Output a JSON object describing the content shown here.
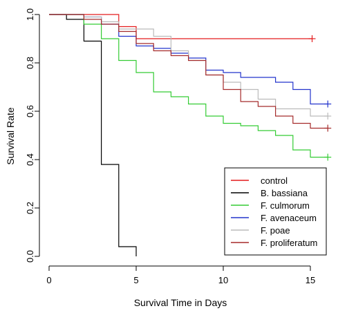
{
  "chart_data": {
    "type": "line",
    "step": true,
    "xlabel": "Survival Time in Days",
    "ylabel": "Survival Rate",
    "xlim": [
      0,
      16.5
    ],
    "ylim": [
      0,
      1
    ],
    "xticks": [
      0,
      5,
      10,
      15
    ],
    "yticks": [
      0.0,
      0.2,
      0.4,
      0.6,
      0.8,
      1.0
    ],
    "ytick_labels": [
      "0.0",
      "0.2",
      "0.4",
      "0.6",
      "0.8",
      "1.0"
    ],
    "grid": false,
    "legend_position": "bottom-right",
    "series": [
      {
        "name": "control",
        "color": "#e41a1c",
        "x": [
          0,
          2,
          4,
          5,
          15
        ],
        "y": [
          1.0,
          1.0,
          0.95,
          0.9,
          0.9
        ],
        "end_x": 15.1,
        "censor_x": 15.1
      },
      {
        "name": "B. bassiana",
        "color": "#000000",
        "x": [
          0,
          1,
          2,
          3,
          4,
          5
        ],
        "y": [
          1.0,
          0.98,
          0.89,
          0.38,
          0.04,
          0.0
        ],
        "end_x": 5,
        "censor_x": null
      },
      {
        "name": "F. culmorum",
        "color": "#33cc33",
        "x": [
          0,
          2,
          3,
          4,
          5,
          6,
          7,
          8,
          9,
          10,
          11,
          12,
          13,
          14,
          15
        ],
        "y": [
          1.0,
          0.96,
          0.9,
          0.81,
          0.76,
          0.68,
          0.66,
          0.63,
          0.58,
          0.55,
          0.54,
          0.52,
          0.5,
          0.44,
          0.41
        ],
        "end_x": 16,
        "censor_x": 16
      },
      {
        "name": "F. avenaceum",
        "color": "#2233cc",
        "x": [
          0,
          2,
          3,
          4,
          5,
          6,
          7,
          8,
          9,
          10,
          11,
          13,
          14,
          15
        ],
        "y": [
          1.0,
          0.99,
          0.96,
          0.91,
          0.87,
          0.86,
          0.84,
          0.82,
          0.77,
          0.76,
          0.74,
          0.72,
          0.69,
          0.63
        ],
        "end_x": 16,
        "censor_x": 16
      },
      {
        "name": "F. poae",
        "color": "#bbbbbb",
        "x": [
          0,
          2,
          3,
          4,
          5,
          6,
          7,
          8,
          9,
          10,
          11,
          12,
          13,
          15
        ],
        "y": [
          1.0,
          0.99,
          0.97,
          0.94,
          0.94,
          0.91,
          0.85,
          0.81,
          0.75,
          0.72,
          0.69,
          0.65,
          0.61,
          0.58
        ],
        "end_x": 16,
        "censor_x": 16
      },
      {
        "name": "F. proliferatum",
        "color": "#a52a2a",
        "x": [
          0,
          2,
          3,
          4,
          5,
          6,
          7,
          8,
          9,
          10,
          11,
          12,
          13,
          14,
          15
        ],
        "y": [
          1.0,
          0.98,
          0.96,
          0.93,
          0.88,
          0.85,
          0.83,
          0.81,
          0.75,
          0.69,
          0.64,
          0.62,
          0.58,
          0.55,
          0.53
        ],
        "end_x": 16,
        "censor_x": 16
      }
    ]
  }
}
